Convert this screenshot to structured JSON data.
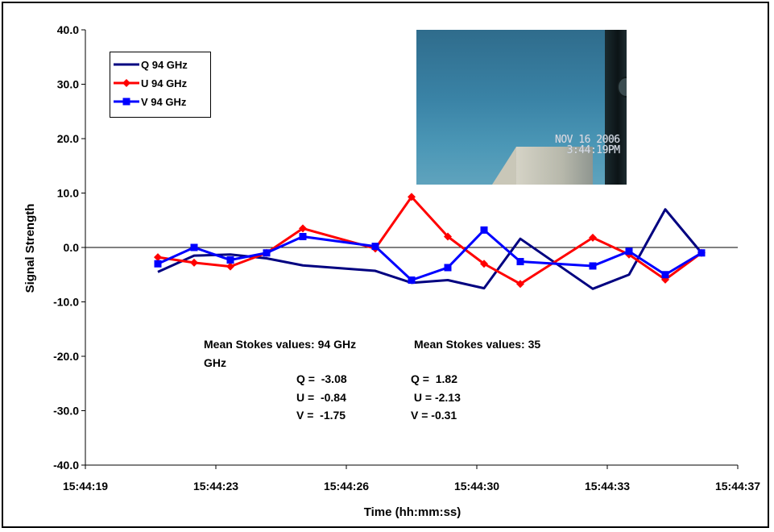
{
  "chart_data": {
    "type": "line",
    "xlabel": "Time (hh:mm:ss)",
    "ylabel": "Signal Strength",
    "ylim": [
      -40,
      40
    ],
    "yticks": [
      "40.0",
      "30.0",
      "20.0",
      "10.0",
      "0.0",
      "-10.0",
      "-20.0",
      "-30.0",
      "-40.0"
    ],
    "xticks": [
      "15:44:19",
      "15:44:23",
      "15:44:26",
      "15:44:30",
      "15:44:33",
      "15:44:37"
    ],
    "x": [
      "15:44:21",
      "15:44:22",
      "15:44:23",
      "15:44:24",
      "15:44:25",
      "15:44:27",
      "15:44:28",
      "15:44:29",
      "15:44:30",
      "15:44:31",
      "15:44:33",
      "15:44:34",
      "15:44:35",
      "15:44:36"
    ],
    "series": [
      {
        "name": "Q 94 GHz",
        "color": "#000080",
        "marker": "none",
        "values": [
          -4.5,
          -1.5,
          -1.3,
          -2.0,
          -3.3,
          -4.3,
          -6.5,
          -6.0,
          -7.5,
          1.6,
          -7.6,
          -5.0,
          7.0,
          -1.0
        ]
      },
      {
        "name": "U 94 GHz",
        "color": "#ff0000",
        "marker": "diamond",
        "values": [
          -1.8,
          -2.8,
          -3.5,
          -1.0,
          3.5,
          -0.2,
          9.3,
          2.0,
          -3.0,
          -6.7,
          1.8,
          -1.3,
          -5.9,
          -1.0
        ]
      },
      {
        "name": "V 94 GHz",
        "color": "#0000ff",
        "marker": "square",
        "values": [
          -3.0,
          0.0,
          -2.3,
          -1.0,
          2.0,
          0.2,
          -6.0,
          -3.7,
          3.2,
          -2.6,
          -3.4,
          -0.7,
          -5.0,
          -1.0
        ]
      }
    ],
    "grid": false,
    "legend_position": "top-left"
  },
  "annotations": {
    "heading_94": "Mean Stokes values: 94 GHz",
    "heading_94_unit": "GHz",
    "heading_35": "Mean Stokes values: 35",
    "q_94": "Q =  -3.08",
    "u_94": "U =  -0.84",
    "v_94": "V =  -1.75",
    "q_35": "Q =  1.82",
    "u_35": " U = -2.13",
    "v_35": "V = -0.31"
  },
  "photo": {
    "date": "NOV 16 2006",
    "time": "3:44:19PM"
  }
}
